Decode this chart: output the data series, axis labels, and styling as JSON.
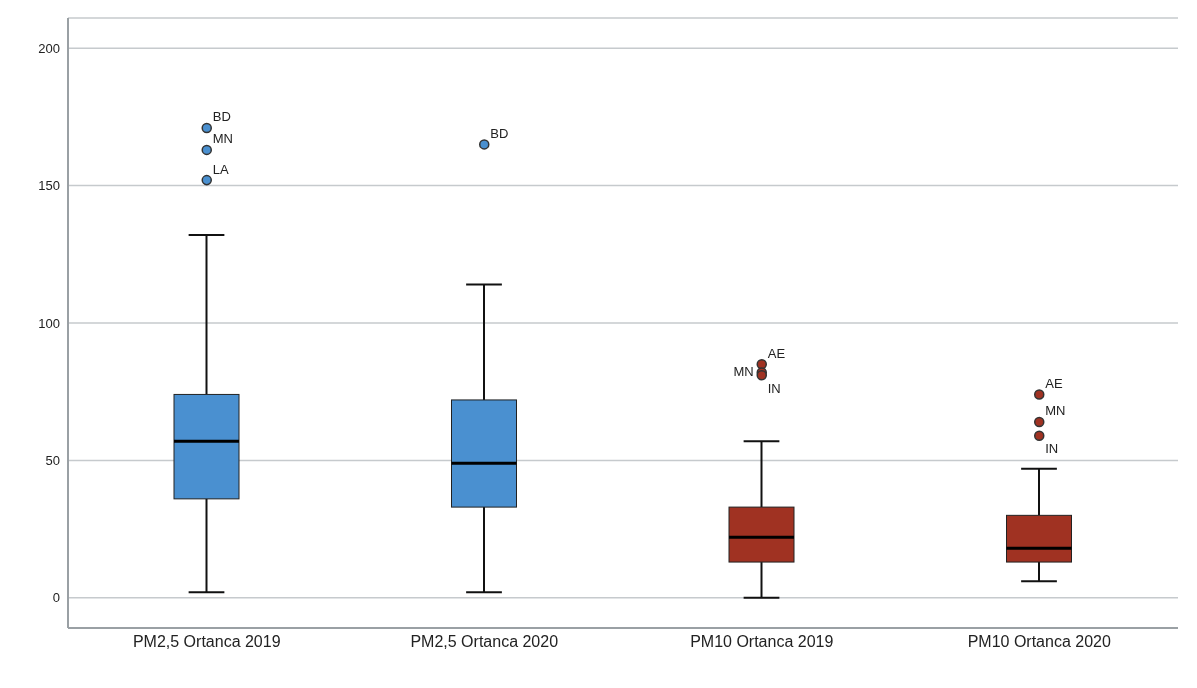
{
  "chart_data": {
    "type": "box",
    "categories": [
      "PM2,5 Ortanca 2019",
      "PM2,5 Ortanca 2020",
      "PM10 Ortanca 2019",
      "PM10 Ortanca 2020"
    ],
    "boxes": [
      {
        "low": 2,
        "q1": 36,
        "median": 57,
        "q3": 74,
        "high": 132,
        "outliers": [
          171,
          163,
          152
        ]
      },
      {
        "low": 2,
        "q1": 33,
        "median": 49,
        "q3": 72,
        "high": 114,
        "outliers": [
          165
        ]
      },
      {
        "low": 0,
        "q1": 13,
        "median": 22,
        "q3": 33,
        "high": 57,
        "outliers": [
          85,
          82,
          81
        ]
      },
      {
        "low": 6,
        "q1": 13,
        "median": 18,
        "q3": 30,
        "high": 47,
        "outliers": [
          74,
          64,
          59
        ]
      }
    ],
    "colors": [
      "#4a90d0",
      "#4a90d0",
      "#a03222",
      "#a03222"
    ],
    "ylim": [
      -11,
      211
    ],
    "yticks": [
      0,
      50,
      100,
      150,
      200
    ],
    "grid": "y",
    "marker": "circle",
    "annotations": [
      "BD",
      "MN",
      "LA",
      "BD",
      "AE",
      "MN",
      "IN",
      "AE",
      "MN",
      "IN"
    ]
  }
}
